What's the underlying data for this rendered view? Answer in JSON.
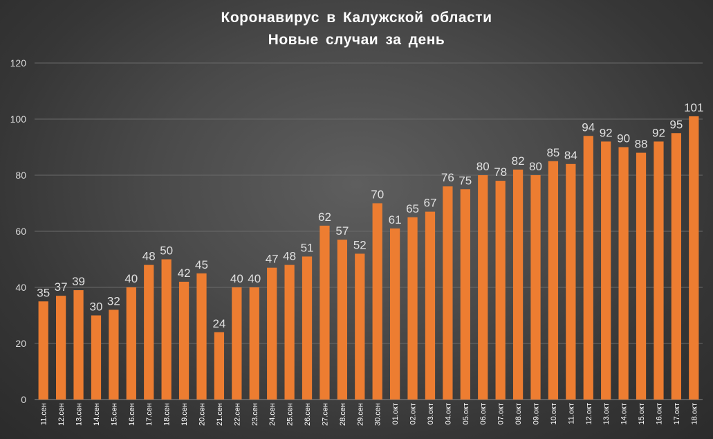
{
  "chart_data": {
    "type": "bar",
    "title": "Коронавирус в Калужской области",
    "subtitle": "Новые случаи за день",
    "xlabel": "",
    "ylabel": "",
    "ylim": [
      0,
      120
    ],
    "yticks": [
      0,
      20,
      40,
      60,
      80,
      100,
      120
    ],
    "grid": true,
    "legend": "none",
    "categories": [
      "11.сен",
      "12.сен",
      "13.сен",
      "14.сен",
      "15.сен",
      "16.сен",
      "17.сен",
      "18.сен",
      "19.сен",
      "20.сен",
      "21.сен",
      "22.сен",
      "23.сен",
      "24.сен",
      "25.сен",
      "26.сен",
      "27.сен",
      "28.сен",
      "29.сен",
      "30.сен",
      "01.окт",
      "02.окт",
      "03.окт",
      "04.окт",
      "05.окт",
      "06.окт",
      "07.окт",
      "08.окт",
      "09.окт",
      "10.окт",
      "11.окт",
      "12.окт",
      "13.окт",
      "14.окт",
      "15.окт",
      "16.окт",
      "17.окт",
      "18.окт"
    ],
    "values": [
      35,
      37,
      39,
      30,
      32,
      40,
      48,
      50,
      42,
      45,
      24,
      40,
      40,
      47,
      48,
      51,
      62,
      57,
      52,
      70,
      61,
      65,
      67,
      76,
      75,
      80,
      78,
      82,
      80,
      85,
      84,
      94,
      92,
      90,
      88,
      92,
      95,
      101
    ]
  },
  "colors": {
    "bar": "#ed7d31",
    "gridline": "#6a6a6a",
    "axis": "#8c8c8c",
    "title": "#ffffff",
    "tick_label": "#d9d9d9",
    "data_label": "#e0e0e0"
  }
}
